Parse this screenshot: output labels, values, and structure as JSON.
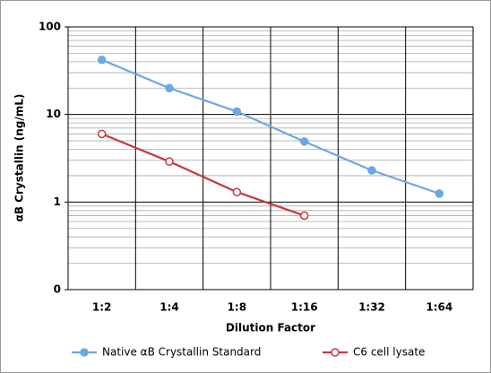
{
  "chart_data": {
    "type": "line",
    "categories": [
      "1:2",
      "1:4",
      "1:8",
      "1:16",
      "1:32",
      "1:64"
    ],
    "series": [
      {
        "name": "Native αB Crystallin Standard",
        "color": "#6ea6e6",
        "marker": "filled",
        "values": [
          42,
          20,
          10.8,
          4.9,
          2.3,
          1.25
        ]
      },
      {
        "name": "C6 cell lysate",
        "color": "#c8383a",
        "marker": "hollow",
        "values": [
          6,
          2.9,
          1.3,
          0.7,
          null,
          null
        ]
      }
    ],
    "ylabel": "αB Crystallin (ng/mL)",
    "xlabel": "Dilution Factor",
    "log_y": true,
    "ylim": [
      0.1,
      100
    ],
    "yticks": [
      {
        "value": 0.1,
        "label": "0"
      },
      1,
      10,
      100
    ],
    "grid": true,
    "minor_grid": true,
    "legend": "bottom"
  }
}
